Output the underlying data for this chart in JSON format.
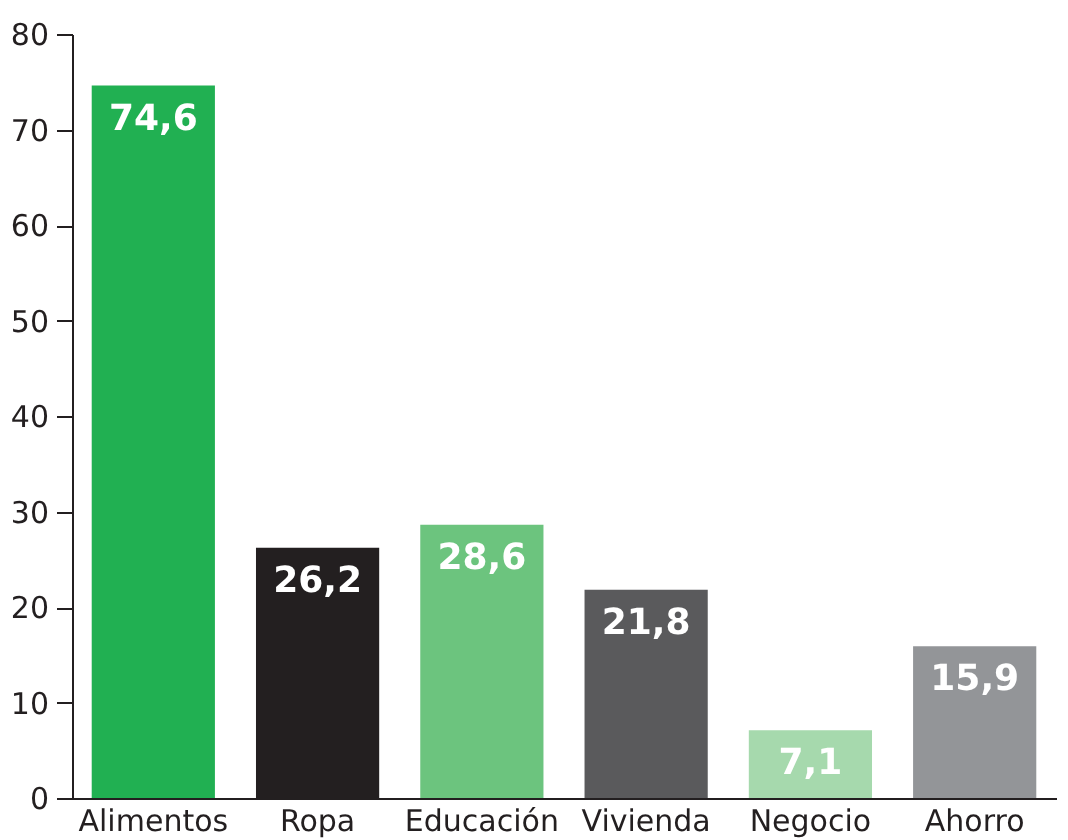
{
  "chart_data": {
    "type": "bar",
    "categories": [
      "Alimentos",
      "Ropa",
      "Educación",
      "Vivienda",
      "Negocio",
      "Ahorro"
    ],
    "values": [
      74.6,
      26.2,
      28.6,
      21.8,
      7.1,
      15.9
    ],
    "colors": [
      "#21b052",
      "#231f20",
      "#6cc47e",
      "#5a5a5c",
      "#a6d9ad",
      "#939598"
    ],
    "value_labels": [
      "74,6",
      "26,2",
      "28,6",
      "21,8",
      "7,1",
      "15,9"
    ],
    "ylim": [
      0,
      80
    ],
    "yticks": [
      0,
      10,
      20,
      30,
      40,
      50,
      60,
      70,
      80
    ],
    "grid": false
  }
}
